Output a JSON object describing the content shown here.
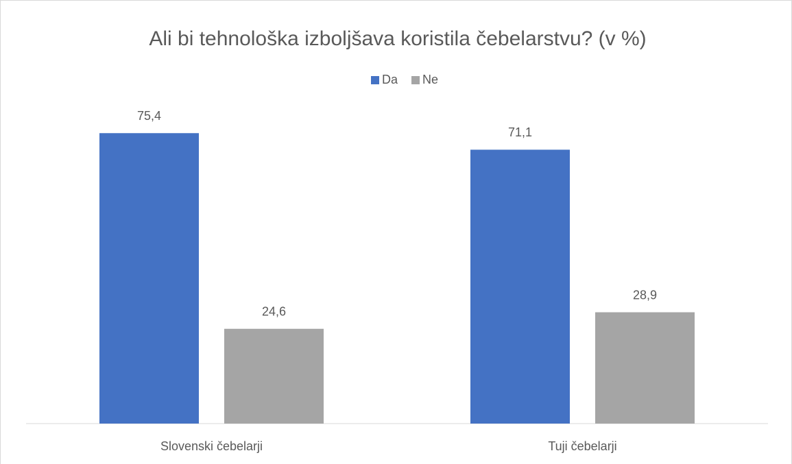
{
  "chart_data": {
    "type": "bar",
    "title": "Ali bi tehnološka izboljšava koristila čebelarstvu? (v %)",
    "categories": [
      "Slovenski čebelarji",
      "Tuji čebelarji"
    ],
    "series": [
      {
        "name": "Da",
        "color": "#4472c4",
        "values": [
          75.4,
          71.1
        ],
        "value_labels": [
          "75,4",
          "71,1"
        ]
      },
      {
        "name": "Ne",
        "color": "#a5a5a5",
        "values": [
          24.6,
          28.9
        ],
        "value_labels": [
          "24,6",
          "28,9"
        ]
      }
    ],
    "legend": "top"
  }
}
